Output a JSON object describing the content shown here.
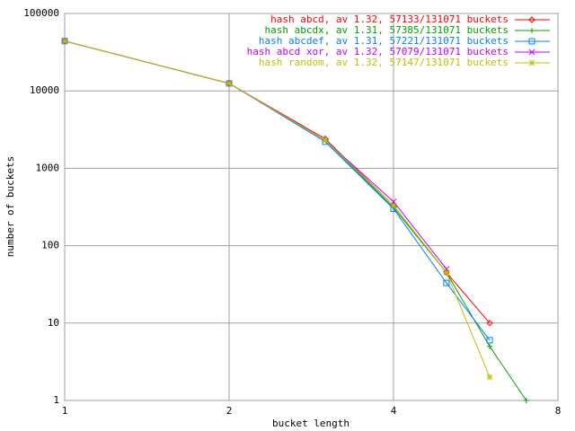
{
  "chart_data": {
    "type": "line",
    "x_label": "bucket length",
    "y_label": "number of buckets",
    "xlog": true,
    "ylog": true,
    "grid": true,
    "legend": "top-right",
    "xlim": [
      1,
      8
    ],
    "ylim": [
      1,
      100000
    ],
    "xticks": [
      1,
      2,
      4,
      8
    ],
    "yticks": [
      1,
      10,
      100,
      1000,
      10000,
      100000
    ],
    "x": [
      1,
      2,
      3,
      4,
      5,
      6,
      7
    ],
    "series": [
      {
        "name": "hash abcd, av 1.32, 57133/131071 buckets",
        "color": "#ff0000",
        "marker": "diamond",
        "values": [
          44000,
          12500,
          2400,
          330,
          45,
          10,
          null
        ]
      },
      {
        "name": "hash abcdx, av 1.31, 57385/131071 buckets",
        "color": "#00a000",
        "marker": "plus",
        "values": [
          44000,
          12500,
          2300,
          310,
          45,
          5,
          1
        ]
      },
      {
        "name": "hash abcdef, av 1.31, 57221/131071 buckets",
        "color": "#0080ff",
        "marker": "box",
        "values": [
          44000,
          12500,
          2200,
          300,
          33,
          6,
          null
        ]
      },
      {
        "name": "hash abcd xor, av 1.32, 57079/131071 buckets",
        "color": "#c000ff",
        "marker": "cross",
        "values": [
          44000,
          12500,
          2300,
          370,
          50,
          null,
          null
        ]
      },
      {
        "name": "hash random, av 1.32, 57147/131071 buckets",
        "color": "#c0c000",
        "marker": "star",
        "values": [
          44000,
          12500,
          2300,
          330,
          45,
          2,
          null
        ]
      }
    ]
  }
}
